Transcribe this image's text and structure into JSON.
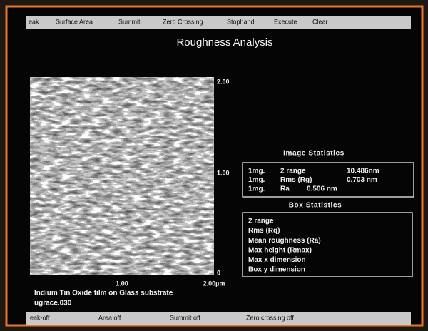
{
  "menu": [
    "eak",
    "Surface Area",
    "Summit",
    "Zero Crossing",
    "Stophand",
    "Execute",
    "Clear"
  ],
  "title": "Roughness Analysis",
  "image_axis": {
    "right": [
      "2.00",
      "1.00",
      "0"
    ],
    "bottom": [
      "1.00",
      "2.00µm"
    ]
  },
  "caption": [
    "Indium Tin Oxide film on Glass substrate",
    "ugrace.030"
  ],
  "image_statistics": {
    "title": "Image Statistics",
    "rows": [
      [
        "1mg.",
        "2 range",
        "10.486nm"
      ],
      [
        "1mg.",
        "Rms (Rg)",
        "0.703 nm"
      ],
      [
        "1mg.",
        "Ra",
        "0.506 nm"
      ]
    ]
  },
  "box_statistics": {
    "title": "Box Statistics",
    "items": [
      "2 range",
      "Rms (Rq)",
      "Mean roughness (Ra)",
      "Max height (Rmax)",
      "Max x dimension",
      "Box y dimension"
    ]
  },
  "status": [
    "eak-off",
    "Area off",
    "Summit off",
    "Zero crossing off"
  ]
}
